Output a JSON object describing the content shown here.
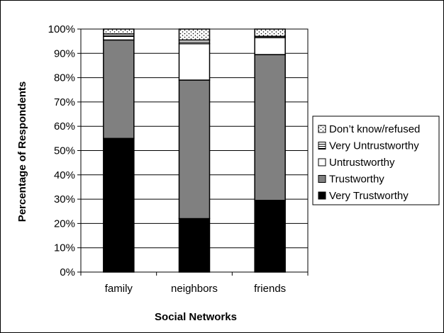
{
  "chart_data": {
    "type": "bar",
    "stacked": true,
    "categories": [
      "family",
      "neighbors",
      "friends"
    ],
    "series": [
      {
        "name": "Very Trustworthy",
        "values": [
          55,
          22,
          29.5
        ],
        "color": "#000000",
        "pattern": "solid"
      },
      {
        "name": "Trustworthy",
        "values": [
          40.5,
          57,
          60
        ],
        "color": "#808080",
        "pattern": "solid"
      },
      {
        "name": "Untrustworthy",
        "values": [
          1.5,
          15,
          7
        ],
        "color": "#ffffff",
        "pattern": "solid"
      },
      {
        "name": "Very Untrustworthy",
        "values": [
          1,
          1.5,
          0.5
        ],
        "color": "#ffffff",
        "pattern": "horizontal-lines"
      },
      {
        "name": "Don’t know/refused",
        "values": [
          2,
          4.5,
          3
        ],
        "color": "#ffffff",
        "pattern": "dots"
      }
    ],
    "xlabel": "Social Networks",
    "ylabel": "Percentage of Respondents",
    "ylim": [
      0,
      100
    ],
    "yticks": [
      "0%",
      "10%",
      "20%",
      "30%",
      "40%",
      "50%",
      "60%",
      "70%",
      "80%",
      "90%",
      "100%"
    ],
    "grid": true,
    "legend_position": "right",
    "legend_order": [
      "Don’t know/refused",
      "Very Untrustworthy",
      "Untrustworthy",
      "Trustworthy",
      "Very Trustworthy"
    ]
  }
}
